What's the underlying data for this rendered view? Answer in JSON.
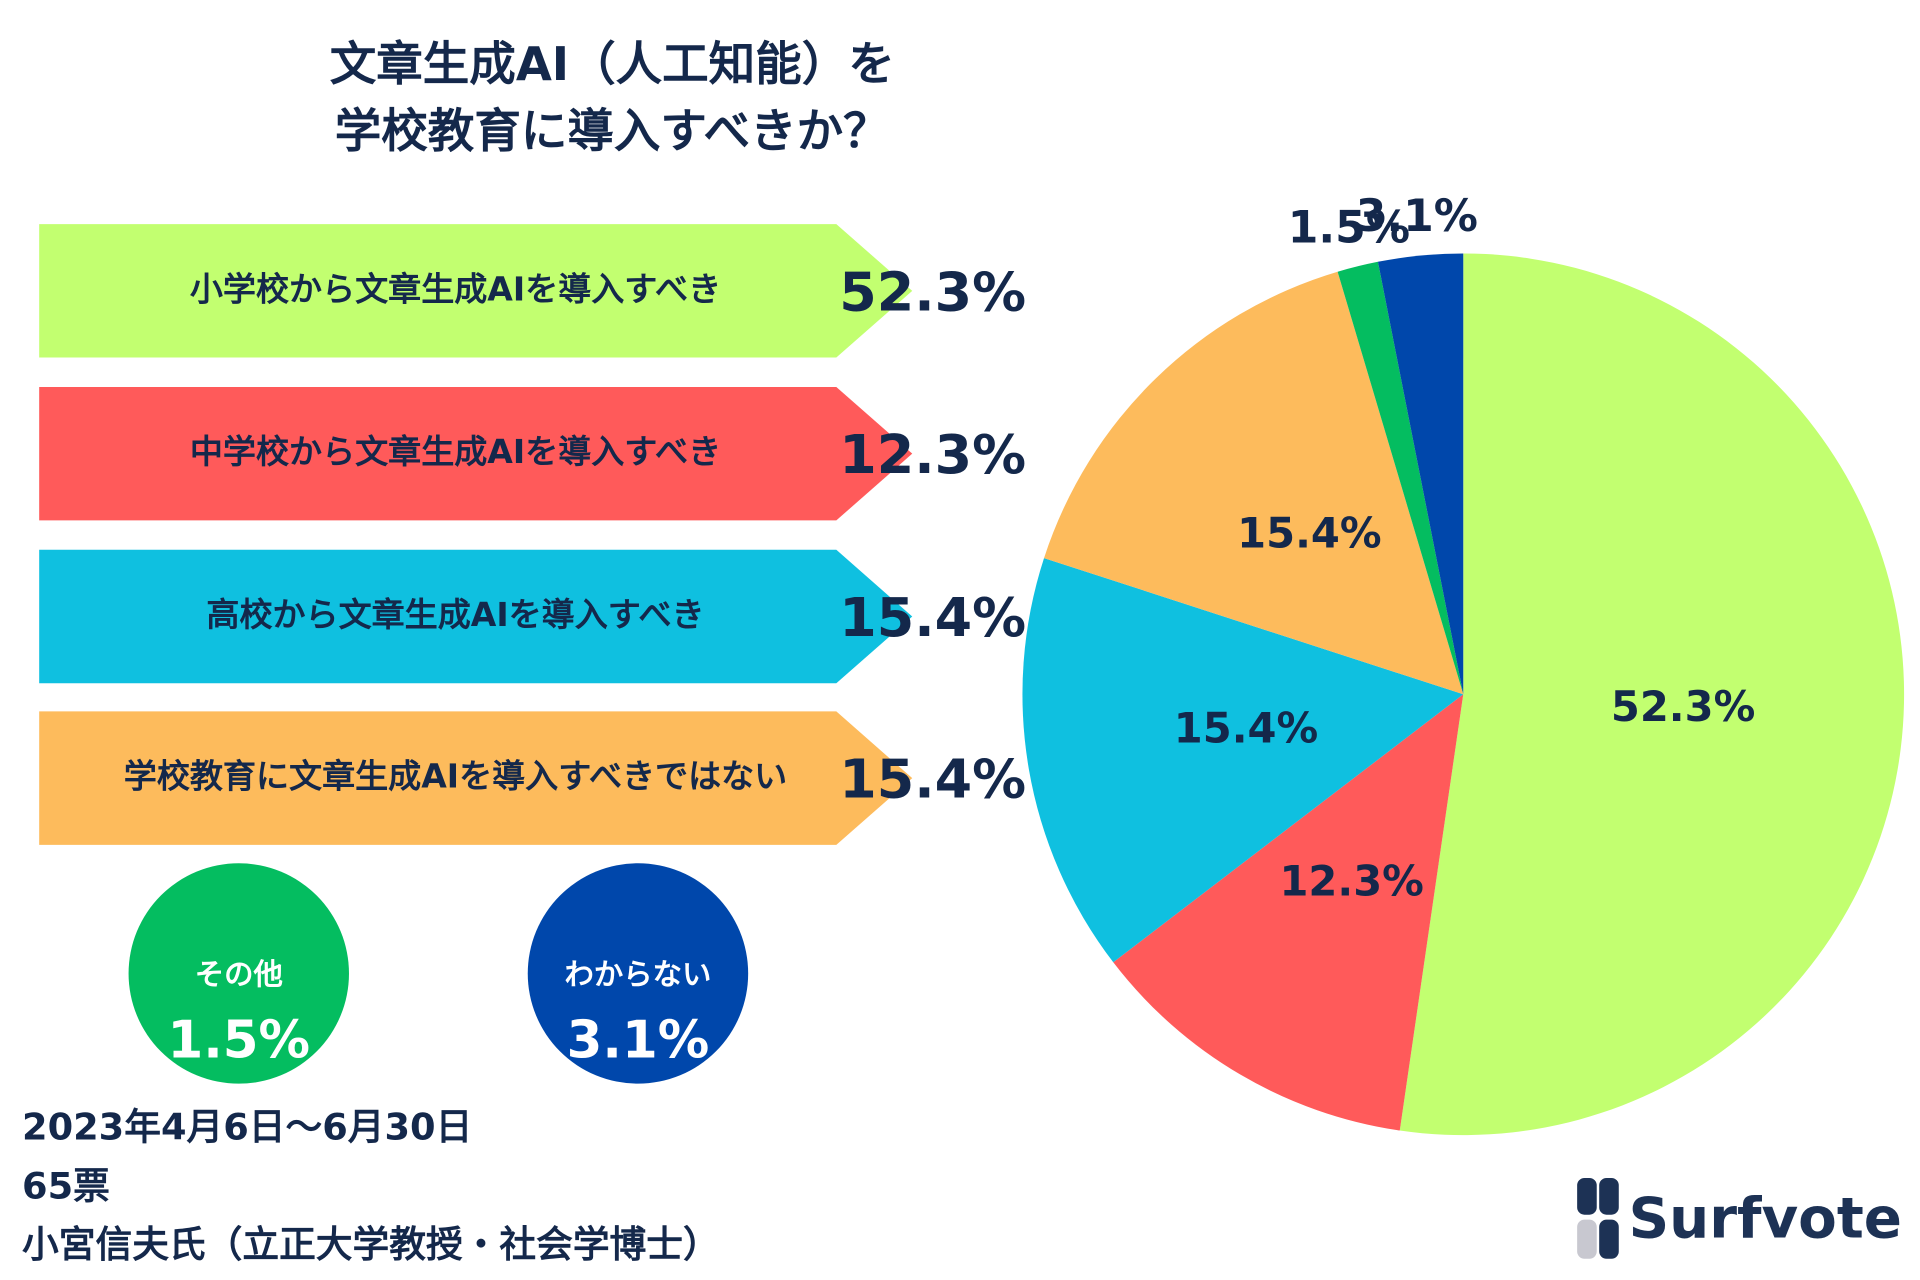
{
  "chart_data": {
    "type": "pie",
    "title_lines": [
      "文章生成AI（人工知能）を",
      "学校教育に導入すべきか？"
    ],
    "categories": [
      "小学校から文章生成AIを導入すべき",
      "中学校から文章生成AIを導入すべき",
      "高校から文章生成AIを導入すべき",
      "学校教育に文章生成AIを導入すべきではない",
      "その他",
      "わからない"
    ],
    "values": [
      52.3,
      12.3,
      15.4,
      15.4,
      1.5,
      3.1
    ],
    "value_labels": [
      "52.3%",
      "12.3%",
      "15.4%",
      "15.4%",
      "1.5%",
      "3.1%"
    ],
    "colors": [
      "#c2ff70",
      "#ff5a5a",
      "#0fc0e0",
      "#fdbb5c",
      "#04bd60",
      "#0047ab"
    ]
  },
  "footer": {
    "period": "2023年4月6日〜6月30日",
    "votes": "65票",
    "source": "小宮信夫氏（立正大学教授・社会学博士）"
  },
  "logo": "Surfvote"
}
